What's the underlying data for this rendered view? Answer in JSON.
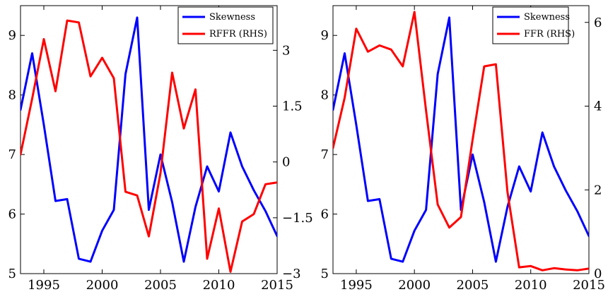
{
  "chart_data": [
    {
      "type": "line",
      "title": "",
      "xlabel": "",
      "ylabel": "",
      "ylabel_right": "",
      "xlim": [
        1993,
        2015
      ],
      "ylim": [
        5,
        9.5
      ],
      "ylim_right": [
        -3,
        4.2
      ],
      "x_ticks": [
        1995,
        2000,
        2005,
        2010,
        2015
      ],
      "y_ticks": [
        5,
        6,
        7,
        8,
        9
      ],
      "y_ticks_right": [
        -3,
        -1.5,
        0,
        1.5,
        3
      ],
      "y_tick_labels_right": [
        "−3",
        "−1.5",
        "0",
        "1.5",
        "3"
      ],
      "grid": false,
      "legend_position": "top-right",
      "series": [
        {
          "name": "Skewness",
          "axis": "left",
          "color": "#0000ff",
          "x": [
            1993,
            1994,
            1995,
            1996,
            1997,
            1998,
            1999,
            2000,
            2001,
            2002,
            2003,
            2004,
            2005,
            2006,
            2007,
            2008,
            2009,
            2010,
            2011,
            2012,
            2013,
            2014,
            2015
          ],
          "values": [
            7.75,
            8.7,
            7.5,
            6.22,
            6.25,
            5.25,
            5.2,
            5.72,
            6.07,
            8.35,
            9.3,
            6.07,
            7.0,
            6.2,
            5.2,
            6.12,
            6.8,
            6.38,
            7.37,
            6.8,
            6.4,
            6.05,
            5.63
          ]
        },
        {
          "name": "RFFR (RHS)",
          "axis": "right",
          "color": "#ff0000",
          "x": [
            1993,
            1994,
            1995,
            1996,
            1997,
            1998,
            1999,
            2000,
            2001,
            2002,
            2003,
            2004,
            2005,
            2006,
            2007,
            2008,
            2009,
            2010,
            2011,
            2012,
            2013,
            2014,
            2015
          ],
          "values": [
            0.2,
            1.7,
            3.3,
            1.9,
            3.8,
            3.75,
            2.3,
            2.8,
            2.25,
            -0.8,
            -0.9,
            -2.0,
            -0.3,
            2.4,
            0.9,
            1.95,
            -2.6,
            -1.25,
            -2.95,
            -1.6,
            -1.4,
            -0.6,
            -0.55
          ]
        }
      ]
    },
    {
      "type": "line",
      "title": "",
      "xlabel": "",
      "ylabel": "",
      "ylabel_right": "",
      "xlim": [
        1993,
        2015
      ],
      "ylim": [
        5,
        9.5
      ],
      "ylim_right": [
        0,
        6.4
      ],
      "x_ticks": [
        1995,
        2000,
        2005,
        2010,
        2015
      ],
      "y_ticks": [
        5,
        6,
        7,
        8,
        9
      ],
      "y_ticks_right": [
        0,
        2,
        4,
        6
      ],
      "y_tick_labels_right": [
        "0",
        "2",
        "4",
        "6"
      ],
      "grid": false,
      "legend_position": "top-right",
      "series": [
        {
          "name": "Skewness",
          "axis": "left",
          "color": "#0000ff",
          "x": [
            1993,
            1994,
            1995,
            1996,
            1997,
            1998,
            1999,
            2000,
            2001,
            2002,
            2003,
            2004,
            2005,
            2006,
            2007,
            2008,
            2009,
            2010,
            2011,
            2012,
            2013,
            2014,
            2015
          ],
          "values": [
            7.75,
            8.7,
            7.5,
            6.22,
            6.25,
            5.25,
            5.2,
            5.72,
            6.07,
            8.35,
            9.3,
            6.07,
            7.0,
            6.2,
            5.2,
            6.12,
            6.8,
            6.38,
            7.37,
            6.8,
            6.4,
            6.05,
            5.63
          ]
        },
        {
          "name": "FFR (RHS)",
          "axis": "right",
          "color": "#ff0000",
          "x": [
            1993,
            1994,
            1995,
            1996,
            1997,
            1998,
            1999,
            2000,
            2001,
            2002,
            2003,
            2004,
            2005,
            2006,
            2007,
            2008,
            2009,
            2010,
            2011,
            2012,
            2013,
            2014,
            2015
          ],
          "values": [
            3.0,
            4.2,
            5.85,
            5.3,
            5.45,
            5.35,
            4.95,
            6.25,
            3.9,
            1.65,
            1.1,
            1.35,
            3.2,
            4.95,
            5.0,
            1.95,
            0.15,
            0.18,
            0.08,
            0.13,
            0.1,
            0.08,
            0.12
          ]
        }
      ]
    }
  ]
}
